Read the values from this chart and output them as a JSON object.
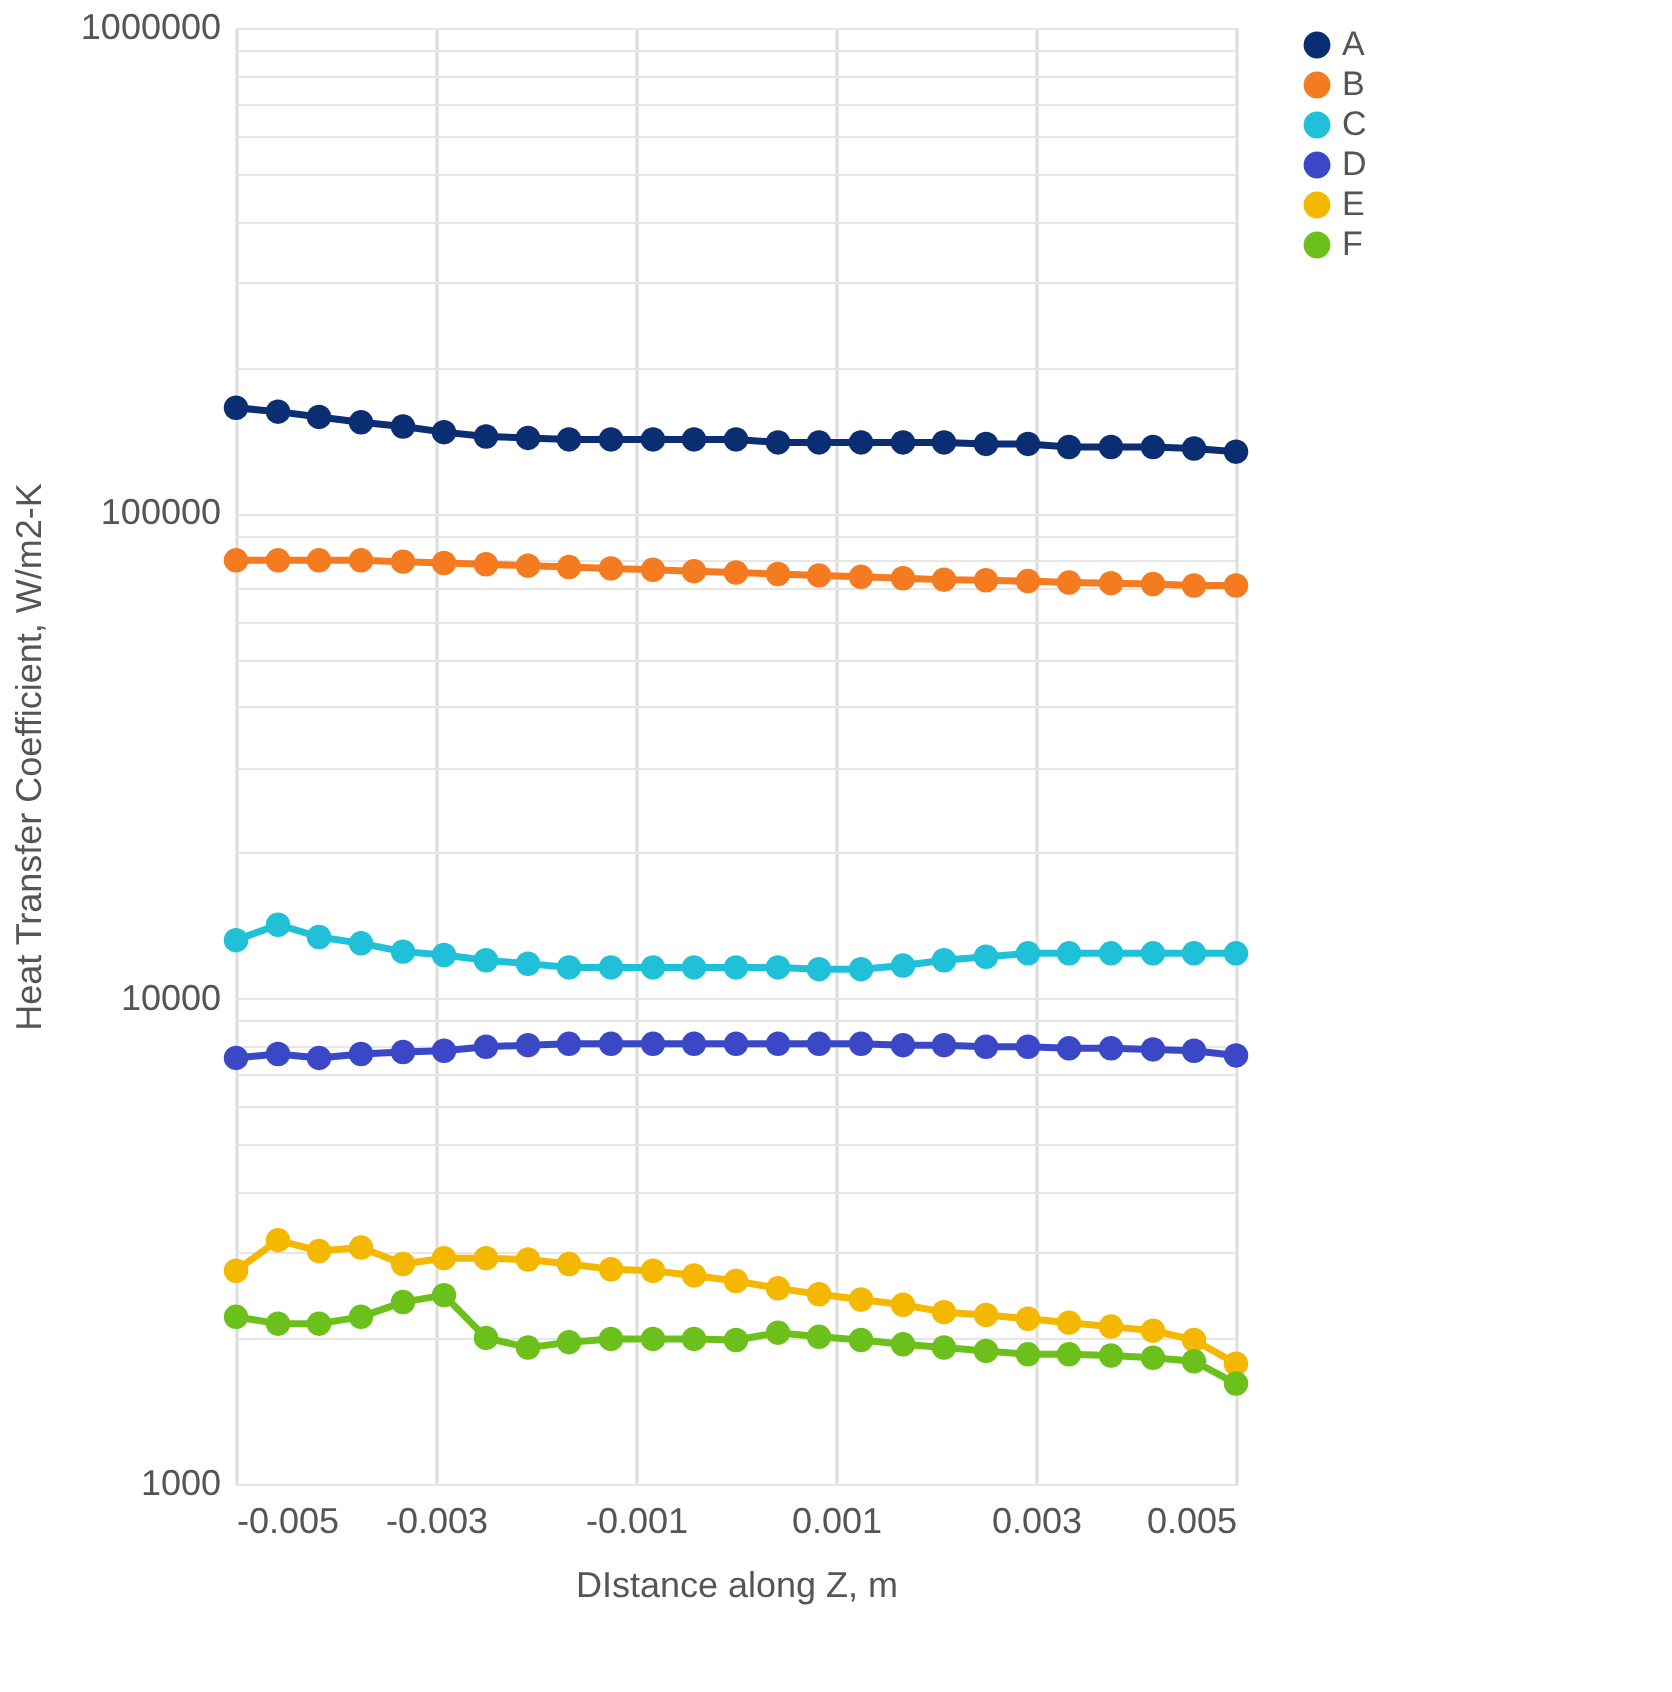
{
  "chart_data": {
    "type": "line",
    "xlabel": "DIstance along Z, m",
    "ylabel": "Heat Transfer Coefficient, W/m2-K",
    "x": [
      -0.005,
      -0.00458,
      -0.00417,
      -0.00375,
      -0.00333,
      -0.00292,
      -0.0025,
      -0.00208,
      -0.00167,
      -0.00125,
      -0.00083,
      -0.00042,
      0,
      0.00042,
      0.00083,
      0.00125,
      0.00167,
      0.00208,
      0.0025,
      0.00292,
      0.00333,
      0.00375,
      0.00417,
      0.00458,
      0.005
    ],
    "series": [
      {
        "name": "A",
        "color": "#0b2d72",
        "values": [
          165000,
          162000,
          158000,
          154000,
          151000,
          147000,
          144000,
          143000,
          142000,
          142000,
          142000,
          142000,
          142000,
          140000,
          140000,
          140000,
          140000,
          140000,
          139000,
          139000,
          137000,
          137000,
          137000,
          136000,
          134000
        ]
      },
      {
        "name": "B",
        "color": "#f47b20",
        "values": [
          80000,
          80000,
          80000,
          80000,
          79500,
          79000,
          78500,
          78000,
          77500,
          77000,
          76500,
          76000,
          75500,
          75000,
          74500,
          74000,
          73500,
          73000,
          72800,
          72500,
          72000,
          71800,
          71500,
          71000,
          71000
        ]
      },
      {
        "name": "C",
        "color": "#1fc0d8",
        "values": [
          13200,
          14200,
          13400,
          13000,
          12500,
          12300,
          12000,
          11800,
          11600,
          11600,
          11600,
          11600,
          11600,
          11600,
          11500,
          11500,
          11700,
          12000,
          12200,
          12400,
          12400,
          12400,
          12400,
          12400,
          12400
        ]
      },
      {
        "name": "D",
        "color": "#3a48c8",
        "values": [
          7550,
          7690,
          7550,
          7690,
          7760,
          7810,
          7960,
          8020,
          8070,
          8070,
          8070,
          8070,
          8070,
          8070,
          8070,
          8070,
          8020,
          8020,
          7960,
          7960,
          7900,
          7900,
          7860,
          7810,
          7640
        ]
      },
      {
        "name": "E",
        "color": "#f5b800",
        "values": [
          2750,
          3180,
          3020,
          3070,
          2840,
          2920,
          2920,
          2900,
          2840,
          2770,
          2750,
          2690,
          2620,
          2530,
          2460,
          2400,
          2340,
          2260,
          2230,
          2190,
          2150,
          2110,
          2070,
          1980,
          1770
        ]
      },
      {
        "name": "F",
        "color": "#6cc01c",
        "values": [
          2210,
          2140,
          2140,
          2210,
          2370,
          2450,
          2000,
          1910,
          1960,
          1990,
          1990,
          1990,
          1980,
          2050,
          2010,
          1980,
          1940,
          1910,
          1880,
          1850,
          1850,
          1840,
          1820,
          1790,
          1610
        ]
      }
    ],
    "xlim": [
      -0.005,
      0.005
    ],
    "xticks": [
      -0.005,
      -0.003,
      -0.001,
      0.001,
      0.003,
      0.005
    ],
    "ylim": [
      1000,
      1000000
    ],
    "log": true,
    "yticks": [
      1000,
      {
        "value": 2000,
        "label": null
      },
      {
        "value": 3000,
        "label": null
      },
      {
        "value": 4000,
        "label": null
      },
      {
        "value": 5000,
        "label": null
      },
      {
        "value": 6000,
        "label": null
      },
      {
        "value": 7000,
        "label": null
      },
      {
        "value": 8000,
        "label": null
      },
      {
        "value": 9000,
        "label": null
      },
      10000,
      {
        "value": 20000,
        "label": null
      },
      {
        "value": 30000,
        "label": null
      },
      {
        "value": 40000,
        "label": null
      },
      {
        "value": 50000,
        "label": null
      },
      {
        "value": 60000,
        "label": null
      },
      {
        "value": 70000,
        "label": null
      },
      {
        "value": 80000,
        "label": null
      },
      {
        "value": 90000,
        "label": null
      },
      100000,
      {
        "value": 200000,
        "label": null
      },
      {
        "value": 300000,
        "label": null
      },
      {
        "value": 400000,
        "label": null
      },
      {
        "value": 500000,
        "label": null
      },
      {
        "value": 600000,
        "label": null
      },
      {
        "value": 700000,
        "label": null
      },
      {
        "value": 800000,
        "label": null
      },
      {
        "value": 900000,
        "label": null
      },
      1000000
    ],
    "grid": true,
    "legend": "right",
    "marker": "circle",
    "line_style": "solid"
  }
}
